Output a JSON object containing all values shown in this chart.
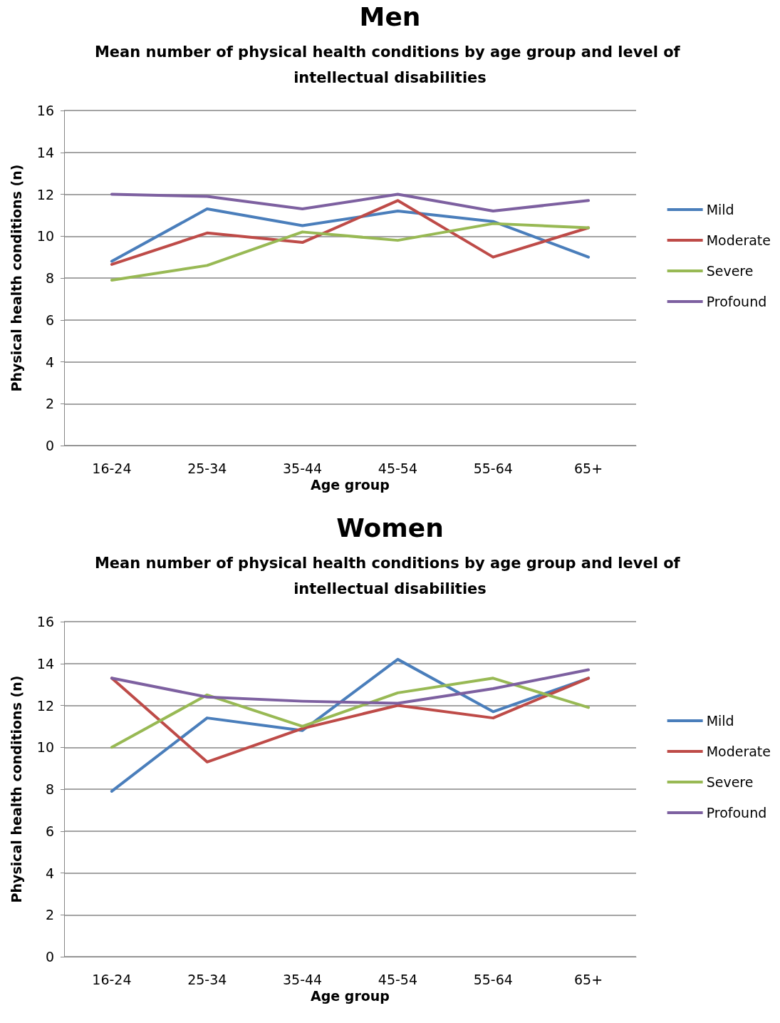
{
  "chart_data": [
    {
      "type": "line",
      "title": "Men",
      "subtitle": "Mean number of physical health conditions by age group and level of intellectual disabilities",
      "xlabel": "Age group",
      "ylabel": "Physical health conditions (n)",
      "categories": [
        "16-24",
        "25-34",
        "35-44",
        "45-54",
        "55-64",
        "65+"
      ],
      "ylim": [
        0,
        16
      ],
      "yticks": [
        0,
        2,
        4,
        6,
        8,
        10,
        12,
        14,
        16
      ],
      "grid": "y",
      "legend": "right",
      "marker": "none",
      "line_style": "solid",
      "series": [
        {
          "name": "Mild",
          "color": "#4a7ebb",
          "values": [
            8.8,
            11.3,
            10.5,
            11.2,
            10.7,
            9.0
          ]
        },
        {
          "name": "Moderate",
          "color": "#be4b48",
          "values": [
            8.65,
            10.15,
            9.7,
            11.7,
            9.0,
            10.4
          ]
        },
        {
          "name": "Severe",
          "color": "#98b954",
          "values": [
            7.9,
            8.6,
            10.2,
            9.8,
            10.6,
            10.4
          ]
        },
        {
          "name": "Profound",
          "color": "#7d60a0",
          "values": [
            12.0,
            11.9,
            11.3,
            12.0,
            11.2,
            11.7
          ]
        }
      ]
    },
    {
      "type": "line",
      "title": "Women",
      "subtitle": "Mean number of physical health conditions by age group and level of intellectual disabilities",
      "xlabel": "Age group",
      "ylabel": "Physical health conditions (n)",
      "categories": [
        "16-24",
        "25-34",
        "35-44",
        "45-54",
        "55-64",
        "65+"
      ],
      "ylim": [
        0,
        16
      ],
      "yticks": [
        0,
        2,
        4,
        6,
        8,
        10,
        12,
        14,
        16
      ],
      "grid": "y",
      "legend": "right",
      "marker": "none",
      "line_style": "solid",
      "series": [
        {
          "name": "Mild",
          "color": "#4a7ebb",
          "values": [
            7.9,
            11.4,
            10.8,
            14.2,
            11.7,
            13.3
          ]
        },
        {
          "name": "Moderate",
          "color": "#be4b48",
          "values": [
            13.3,
            9.3,
            10.9,
            12.0,
            11.4,
            13.3
          ]
        },
        {
          "name": "Severe",
          "color": "#98b954",
          "values": [
            10.0,
            12.5,
            11.0,
            12.6,
            13.3,
            11.9
          ]
        },
        {
          "name": "Profound",
          "color": "#7d60a0",
          "values": [
            13.3,
            12.4,
            12.2,
            12.1,
            12.8,
            13.7
          ]
        }
      ]
    }
  ]
}
